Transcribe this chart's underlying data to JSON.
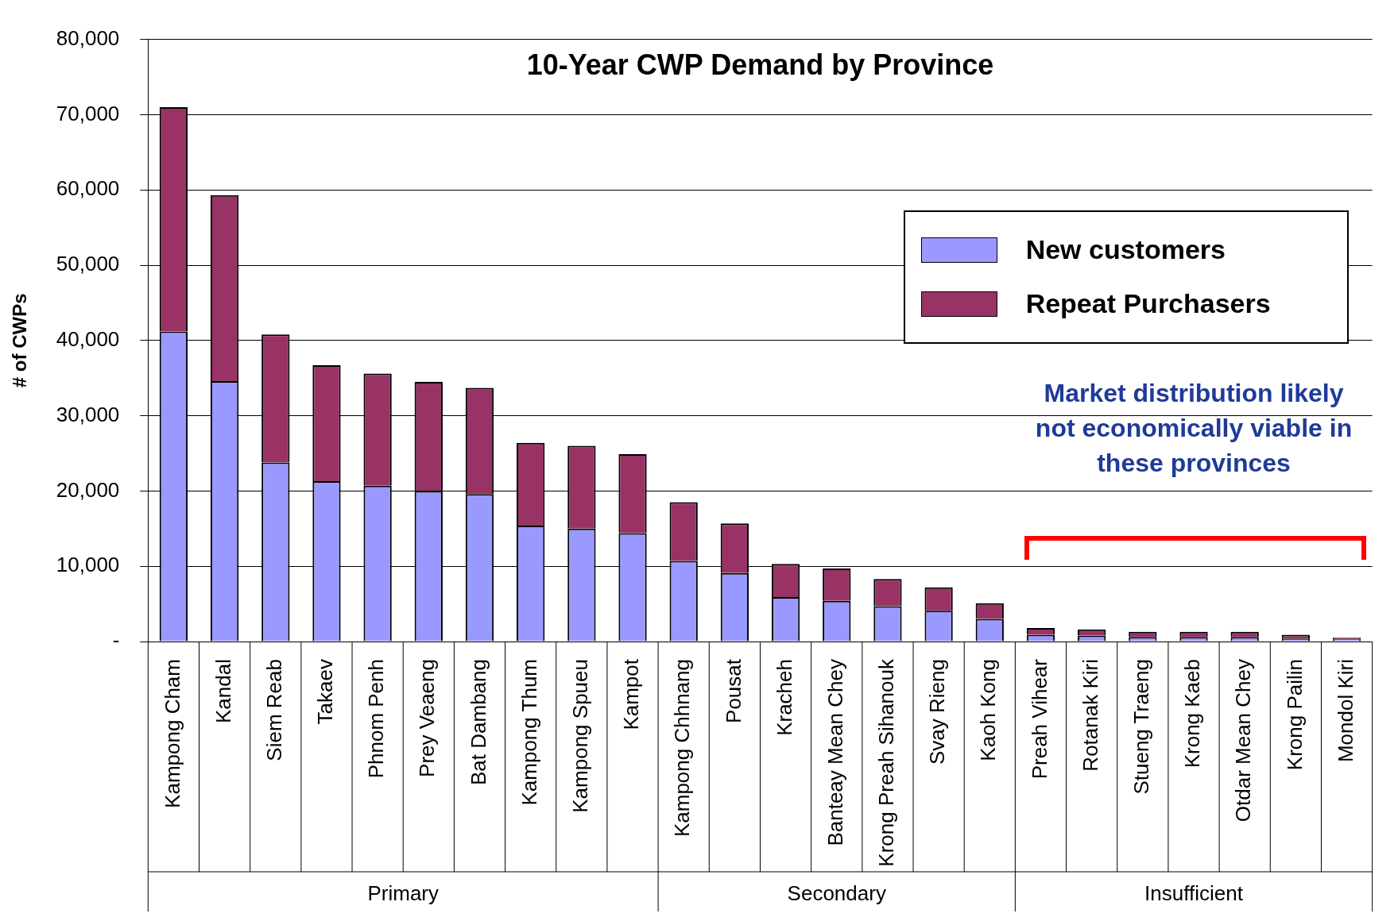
{
  "chart_data": {
    "type": "bar",
    "title": "10-Year CWP Demand by Province",
    "ylabel": "# of CWPs",
    "stacked": true,
    "categories": [
      "Kampong Cham",
      "Kandal",
      "Siem Reab",
      "Takaev",
      "Phnom Penh",
      "Prey Veaeng",
      "Bat Dambang",
      "Kampong Thum",
      "Kampong Spueu",
      "Kampot",
      "Kampong Chhnang",
      "Pousat",
      "Kracheh",
      "Banteay Mean Chey",
      "Krong Preah Sihanouk",
      "Svay Rieng",
      "Kaoh Kong",
      "Preah Vihear",
      "Rotanak Kiri",
      "Stueng Traeng",
      "Krong Kaeb",
      "Otdar Mean Chey",
      "Krong Pailin",
      "Mondol Kiri"
    ],
    "series": [
      {
        "name": "New customers",
        "color": "#9999ff",
        "values": [
          41200,
          34600,
          23800,
          21300,
          20700,
          20000,
          19600,
          15400,
          15000,
          14400,
          10700,
          9100,
          5900,
          5400,
          4700,
          4100,
          3000,
          900,
          800,
          600,
          600,
          600,
          400,
          300
        ]
      },
      {
        "name": "Repeat Purchasers",
        "color": "#993366",
        "values": [
          29800,
          24700,
          17000,
          15400,
          14900,
          14500,
          14100,
          11000,
          11000,
          10500,
          7800,
          6600,
          4400,
          4300,
          3600,
          3100,
          2100,
          900,
          800,
          700,
          700,
          700,
          500,
          200
        ]
      }
    ],
    "ylim": [
      0,
      80000
    ],
    "yticks": [
      {
        "value": 0,
        "label": "-"
      },
      {
        "value": 10000,
        "label": "10,000"
      },
      {
        "value": 20000,
        "label": "20,000"
      },
      {
        "value": 30000,
        "label": "30,000"
      },
      {
        "value": 40000,
        "label": "40,000"
      },
      {
        "value": 50000,
        "label": "50,000"
      },
      {
        "value": 60000,
        "label": "60,000"
      },
      {
        "value": 70000,
        "label": "70,000"
      },
      {
        "value": 80000,
        "label": "80,000"
      }
    ],
    "grid": "y",
    "legend": "top right",
    "annotations": [
      "Primary",
      "Secondary",
      "Insufficient",
      "Market distribution likely not economically viable in these provinces"
    ]
  }
}
